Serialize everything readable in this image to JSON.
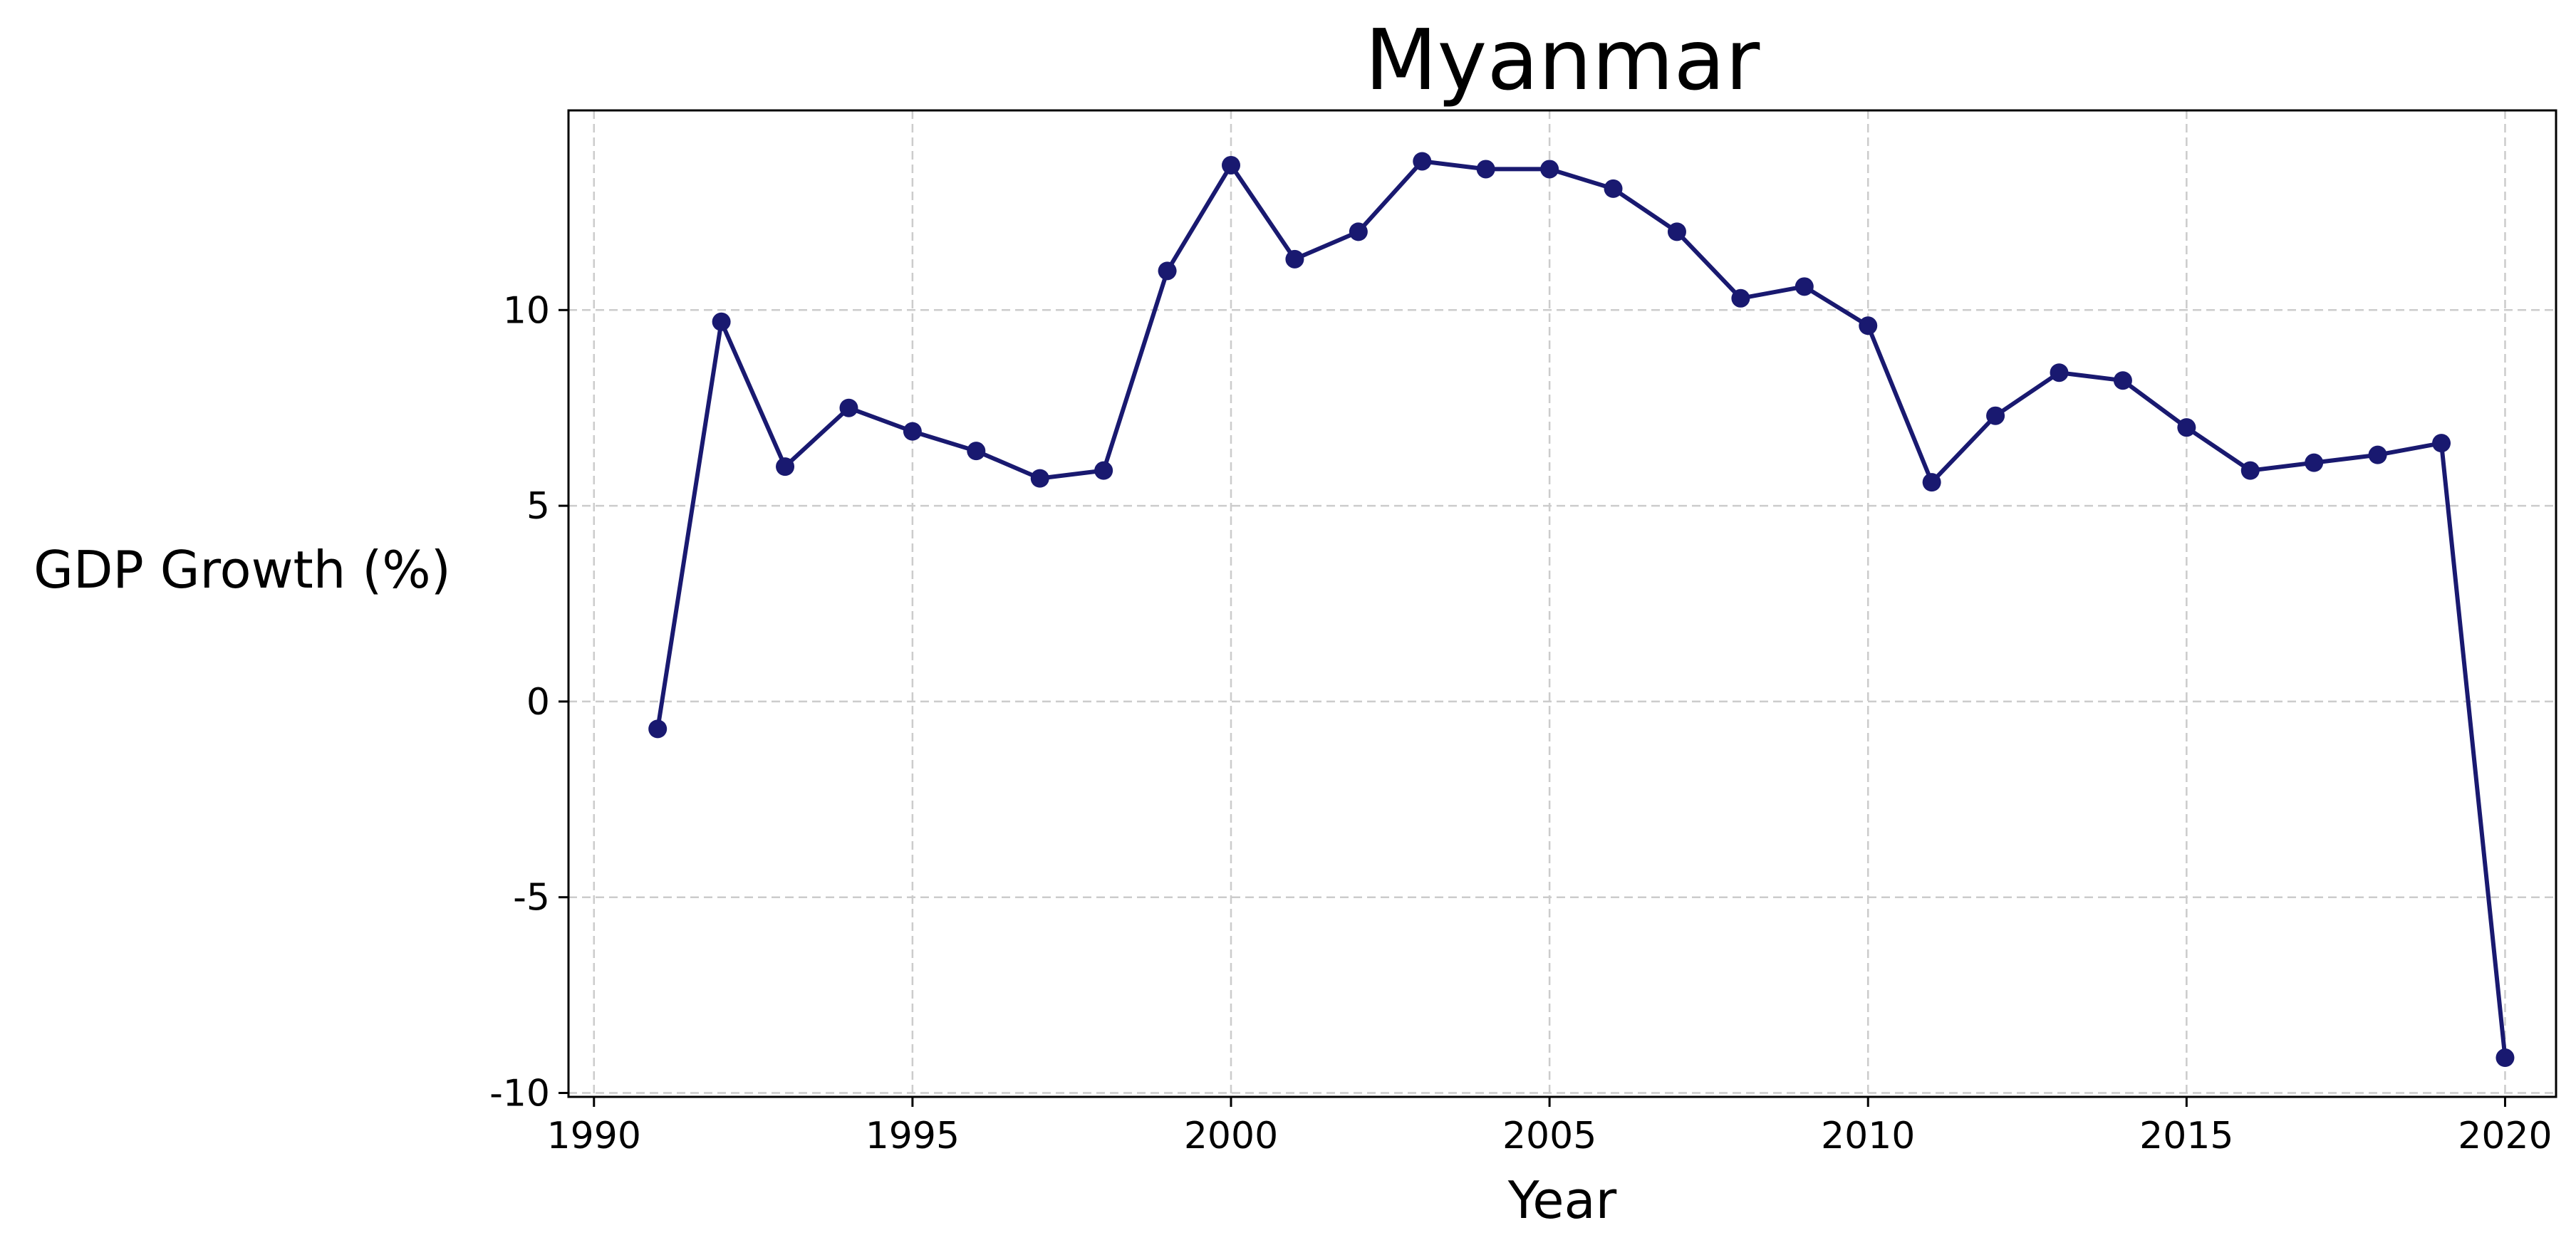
{
  "chart_data": {
    "type": "line",
    "title": "Myanmar",
    "xlabel": "Year",
    "ylabel": "GDP Growth (%)",
    "xlim": [
      1989.6,
      2020.8
    ],
    "ylim": [
      -10.1,
      15.1
    ],
    "xticks": [
      1990,
      1995,
      2000,
      2005,
      2010,
      2015,
      2020
    ],
    "xtick_labels": [
      "1990",
      "1995",
      "2000",
      "2005",
      "2010",
      "2015",
      "2020"
    ],
    "yticks": [
      -10,
      -5,
      0,
      5,
      10
    ],
    "ytick_labels": [
      "-10",
      "-5",
      "0",
      "5",
      "10"
    ],
    "grid": true,
    "line_color": "#191970",
    "grid_color": "#cccccc",
    "series": [
      {
        "x": [
          1991,
          1992,
          1993,
          1994,
          1995,
          1996,
          1997,
          1998,
          1999,
          2000,
          2001,
          2002,
          2003,
          2004,
          2005,
          2006,
          2007,
          2008,
          2009,
          2010,
          2011,
          2012,
          2013,
          2014,
          2015,
          2016,
          2017,
          2018,
          2019,
          2020
        ],
        "values": [
          -0.7,
          9.7,
          6.0,
          7.5,
          6.9,
          6.4,
          5.7,
          5.9,
          11.0,
          13.7,
          11.3,
          12.0,
          13.8,
          13.6,
          13.6,
          13.1,
          12.0,
          10.3,
          10.6,
          9.6,
          5.6,
          7.3,
          8.4,
          8.2,
          7.0,
          5.9,
          6.1,
          6.3,
          6.6,
          -9.1
        ]
      }
    ]
  }
}
